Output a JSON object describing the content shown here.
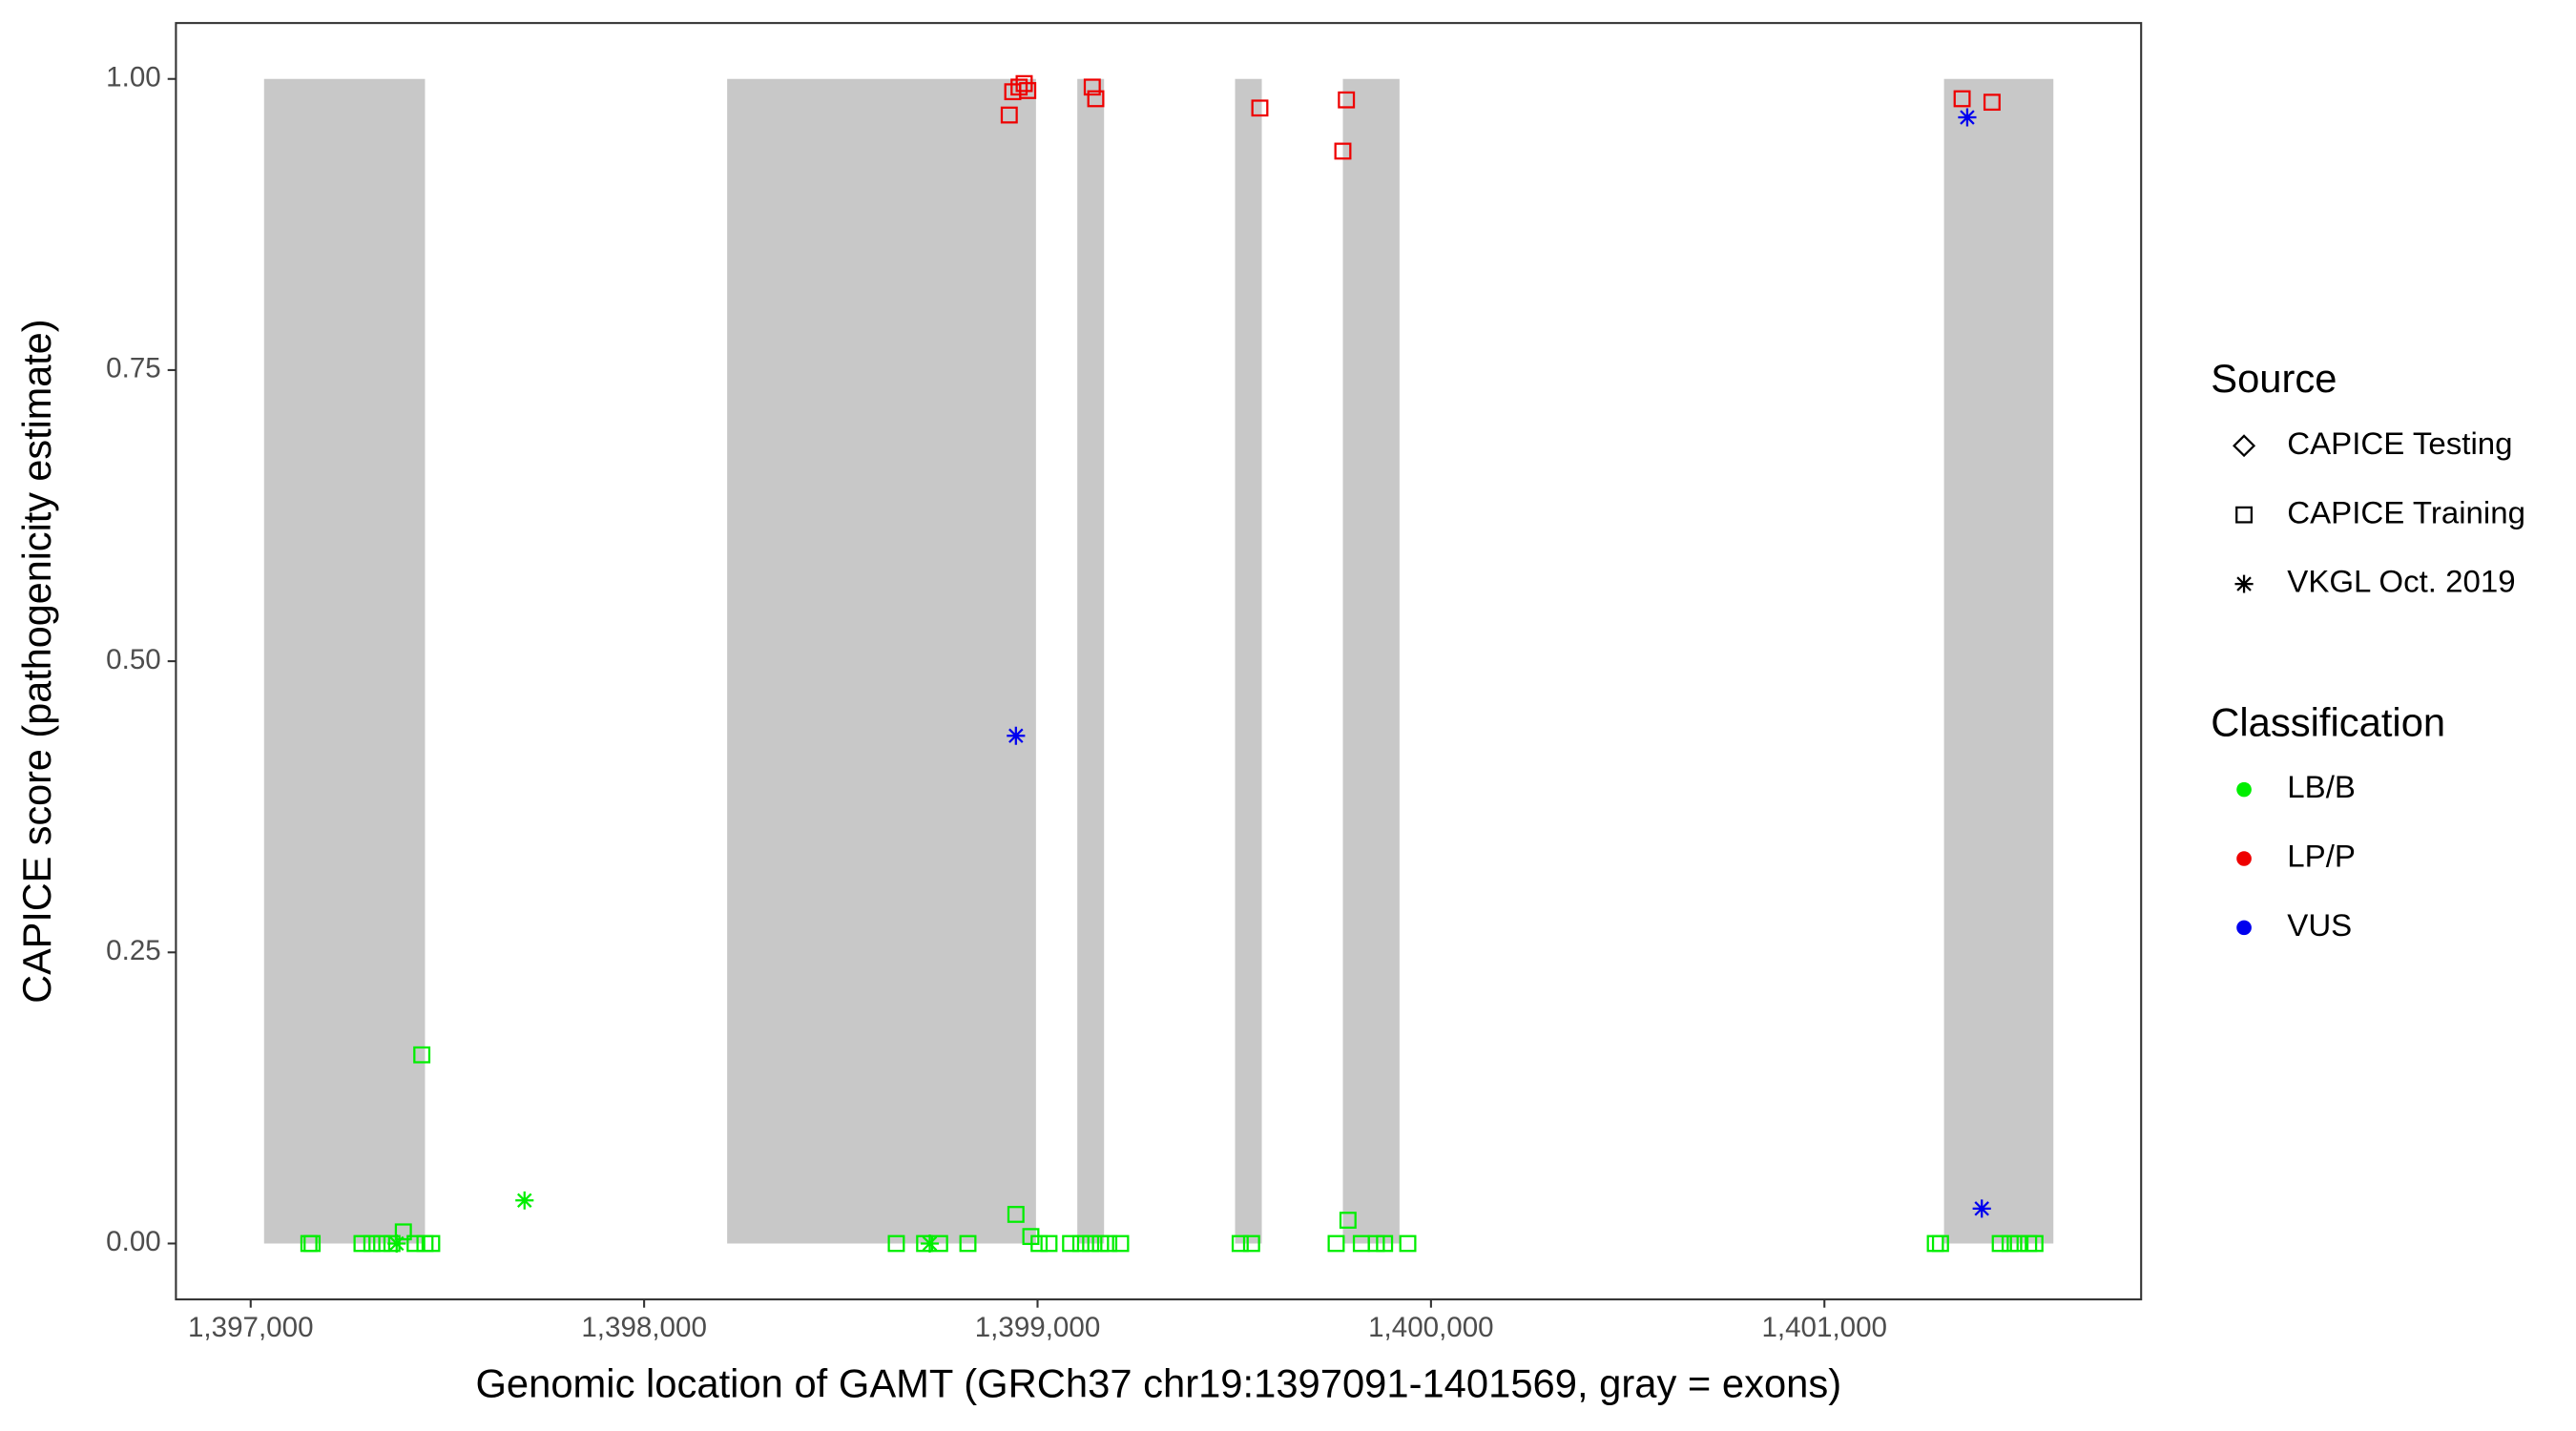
{
  "chart_data": {
    "type": "scatter",
    "x_label": "Genomic location of GAMT (GRCh37 chr19:1397091-1401569, gray = exons)",
    "y_label": "CAPICE score (pathogenicity estimate)",
    "xlim": [
      1396810,
      1401805
    ],
    "ylim": [
      -0.048,
      1.048
    ],
    "xticks": [
      {
        "value": 1397000,
        "label": "1,397,000"
      },
      {
        "value": 1398000,
        "label": "1,398,000"
      },
      {
        "value": 1399000,
        "label": "1,399,000"
      },
      {
        "value": 1400000,
        "label": "1,400,000"
      },
      {
        "value": 1401000,
        "label": "1,401,000"
      }
    ],
    "yticks": [
      {
        "value": 0,
        "label": "0.00"
      },
      0.25,
      {
        "value": 0.5,
        "label": "0.50"
      },
      0.75,
      {
        "value": 1,
        "label": "1.00"
      }
    ],
    "exons": {
      "color": "#c8c8c8",
      "starts": [
        1397034,
        1398211,
        1399101,
        1399502,
        1399776,
        1401304
      ],
      "ends": [
        1397443,
        1398996,
        1399169,
        1399570,
        1399920,
        1401582
      ]
    },
    "shape_legend": {
      "title": "Source",
      "entries": [
        "CAPICE Testing",
        "CAPICE Training",
        "VKGL Oct. 2019"
      ]
    },
    "color_legend": {
      "title": "Classification",
      "entries": [
        {
          "name": "LB/B",
          "color": "#00ee00"
        },
        {
          "name": "LP/P",
          "color": "#ee0000"
        },
        {
          "name": "VUS",
          "color": "#0000ee"
        }
      ]
    },
    "points": [
      {
        "classification": 0,
        "source": 1,
        "x": [
          1397148,
          1397156,
          1397283,
          1397308,
          1397333,
          1397359,
          1397388,
          1397418,
          1397443,
          1397460,
          1397435,
          1398641,
          1398713,
          1398751,
          1398823,
          1398945,
          1398983,
          1399004,
          1399029,
          1399084,
          1399110,
          1399135,
          1399160,
          1399181,
          1399211,
          1399515,
          1399544,
          1399759,
          1399789,
          1399823,
          1399861,
          1399882,
          1399941,
          1401282,
          1401295,
          1401447,
          1401472,
          1401493,
          1401519,
          1401535
        ],
        "values": [
          0,
          0,
          0,
          0,
          0,
          0,
          0.01,
          0,
          0,
          0,
          0.162,
          0,
          0,
          0,
          0,
          0.025,
          0.006,
          0,
          0,
          0,
          0,
          0,
          0,
          0,
          0,
          0,
          0,
          0,
          0.02,
          0,
          0,
          0,
          0,
          0,
          0,
          0,
          0,
          0,
          0,
          0
        ]
      },
      {
        "classification": 0,
        "source": 2,
        "x": [
          1397371,
          1397696,
          1398726
        ],
        "values": [
          0,
          0.037,
          0
        ]
      },
      {
        "classification": 1,
        "source": 1,
        "x": [
          1398928,
          1398937,
          1398953,
          1398966,
          1398975,
          1399139,
          1399148,
          1399565,
          1399785,
          1399776,
          1401350,
          1401426
        ],
        "values": [
          0.969,
          0.989,
          0.993,
          0.996,
          0.99,
          0.993,
          0.983,
          0.975,
          0.982,
          0.938,
          0.983,
          0.98
        ]
      },
      {
        "classification": 2,
        "source": 2,
        "x": [
          1398945,
          1401363,
          1401400
        ],
        "values": [
          0.436,
          0.967,
          0.03
        ]
      }
    ]
  }
}
